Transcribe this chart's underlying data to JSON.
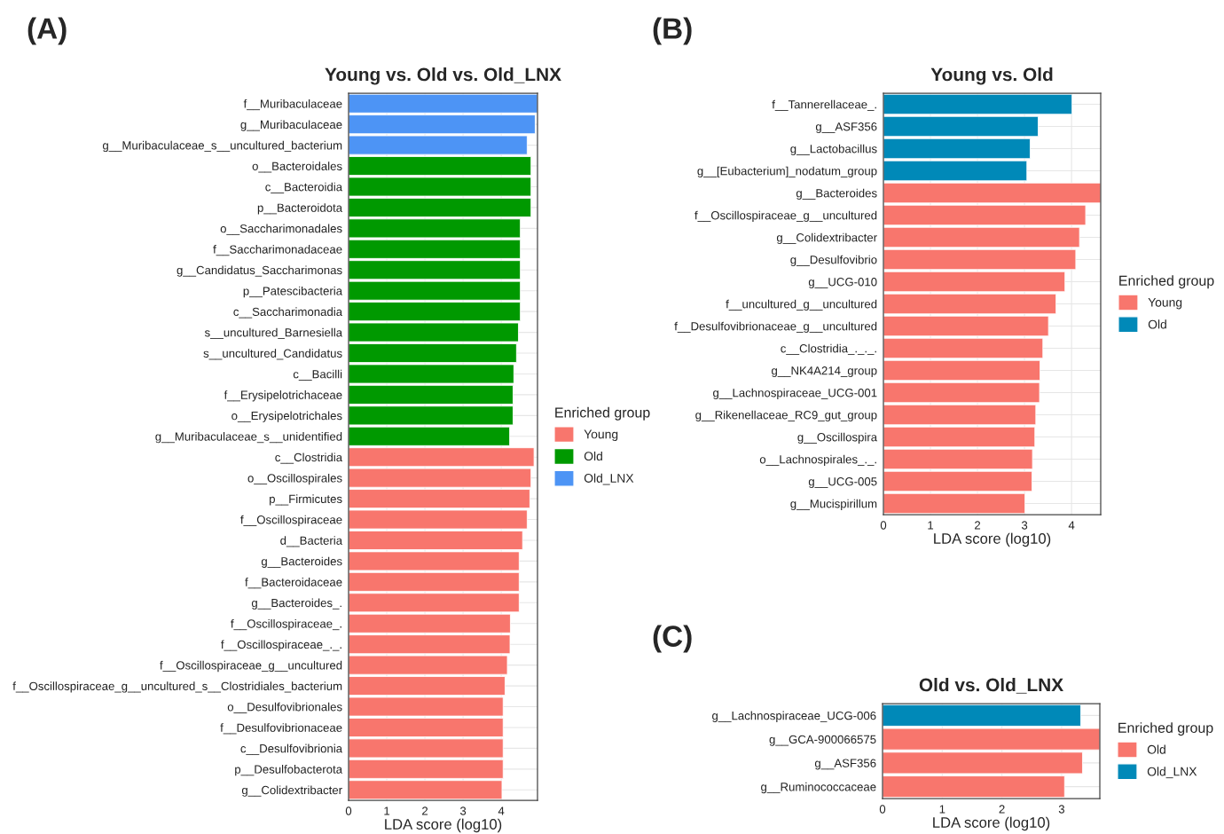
{
  "chart_data": [
    {
      "type": "bar",
      "orientation": "horizontal",
      "title": "Young vs. Old vs. Old_LNX",
      "xlabel": "LDA score (log10)",
      "legend_title": "Enriched group",
      "legend": "right",
      "grid": true,
      "annotations": [
        "(A)"
      ],
      "categories": [
        "f__Muribaculaceae",
        "g__Muribaculaceae",
        "g__Muribaculaceae_s__uncultured_bacterium",
        "o__Bacteroidales",
        "c__Bacteroidia",
        "p__Bacteroidota",
        "o__Saccharimonadales",
        "f__Saccharimonadaceae",
        "g__Candidatus_Saccharimonas",
        "p__Patescibacteria",
        "c__Saccharimonadia",
        "s__uncultured_Barnesiella",
        "s__uncultured_Candidatus",
        "c__Bacilli",
        "f__Erysipelotrichaceae",
        "o__Erysipelotrichales",
        "g__Muribaculaceae_s__unidentified",
        "c__Clostridia",
        "o__Oscillospirales",
        "p__Firmicutes",
        "f__Oscillospiraceae",
        "d__Bacteria",
        "g__Bacteroides",
        "f__Bacteroidaceae",
        "g__Bacteroides_.",
        "f__Oscillospiraceae_.",
        "f__Oscillospiraceae_._.",
        "f__Oscillospiraceae_g__uncultured",
        "f__Oscillospiraceae_g__uncultured_s__Clostridiales_bacterium",
        "o__Desulfovibrionales",
        "f__Desulfovibrionaceae",
        "c__Desulfovibrionia",
        "p__Desulfobacterota",
        "g__Colidextribacter"
      ],
      "xlim": [
        0,
        4.95
      ],
      "xticks": [
        0,
        1,
        2,
        3,
        4
      ],
      "series": [
        {
          "name": "Young",
          "color": "#F8766D",
          "values": [
            null,
            null,
            null,
            null,
            null,
            null,
            null,
            null,
            null,
            null,
            null,
            null,
            null,
            null,
            null,
            null,
            null,
            4.86,
            4.78,
            4.75,
            4.68,
            4.56,
            4.47,
            4.47,
            4.47,
            4.24,
            4.23,
            4.16,
            4.1,
            4.05,
            4.05,
            4.05,
            4.05,
            4.02
          ]
        },
        {
          "name": "Old",
          "color": "#009900",
          "values": [
            null,
            null,
            null,
            4.78,
            4.78,
            4.78,
            4.5,
            4.5,
            4.5,
            4.5,
            4.5,
            4.45,
            4.4,
            4.33,
            4.31,
            4.31,
            4.22,
            null,
            null,
            null,
            null,
            null,
            null,
            null,
            null,
            null,
            null,
            null,
            null,
            null,
            null,
            null,
            null,
            null
          ]
        },
        {
          "name": "Old_LNX",
          "color": "#4D94F5",
          "values": [
            4.95,
            4.89,
            4.68,
            null,
            null,
            null,
            null,
            null,
            null,
            null,
            null,
            null,
            null,
            null,
            null,
            null,
            null,
            null,
            null,
            null,
            null,
            null,
            null,
            null,
            null,
            null,
            null,
            null,
            null,
            null,
            null,
            null,
            null,
            null
          ]
        }
      ]
    },
    {
      "type": "bar",
      "orientation": "horizontal",
      "title": "Young vs. Old",
      "xlabel": "LDA score (log10)",
      "legend_title": "Enriched group",
      "legend": "right",
      "grid": true,
      "annotations": [
        "(B)"
      ],
      "categories": [
        "f__Tannerellaceae_.",
        "g__ASF356",
        "g__Lactobacillus",
        "g__[Eubacterium]_nodatum_group",
        "g__Bacteroides",
        "f__Oscillospiraceae_g__uncultured",
        "g__Colidextribacter",
        "g__Desulfovibrio",
        "g__UCG-010",
        "f__uncultured_g__uncultured",
        "f__Desulfovibrionaceae_g__uncultured",
        "c__Clostridia_._._.",
        "g__NK4A214_group",
        "g__Lachnospiraceae_UCG-001",
        "g__Rikenellaceae_RC9_gut_group",
        "g__Oscillospira",
        "o__Lachnospirales_._.",
        "g__UCG-005",
        "g__Mucispirillum"
      ],
      "xlim": [
        0,
        4.62
      ],
      "xticks": [
        0,
        1,
        2,
        3,
        4
      ],
      "series": [
        {
          "name": "Young",
          "color": "#F8766D",
          "values": [
            null,
            null,
            null,
            null,
            4.62,
            4.3,
            4.17,
            4.09,
            3.86,
            3.67,
            3.51,
            3.39,
            3.33,
            3.32,
            3.24,
            3.22,
            3.17,
            3.16,
            3.01
          ]
        },
        {
          "name": "Old",
          "color": "#0089B8",
          "values": [
            4.01,
            3.29,
            3.12,
            3.05,
            null,
            null,
            null,
            null,
            null,
            null,
            null,
            null,
            null,
            null,
            null,
            null,
            null,
            null,
            null
          ]
        }
      ]
    },
    {
      "type": "bar",
      "orientation": "horizontal",
      "title": "Old vs. Old_LNX",
      "xlabel": "LDA score (log10)",
      "legend_title": "Enriched group",
      "legend": "right",
      "grid": true,
      "annotations": [
        "(C)"
      ],
      "categories": [
        "g__Lachnospiraceae_UCG-006",
        "g__GCA-900066575",
        "g__ASF356",
        "g__Ruminococcaceae"
      ],
      "xlim": [
        0,
        3.64
      ],
      "xticks": [
        0,
        1,
        2,
        3
      ],
      "series": [
        {
          "name": "Old",
          "color": "#F8766D",
          "values": [
            null,
            3.64,
            3.35,
            3.05
          ]
        },
        {
          "name": "Old_LNX",
          "color": "#0089B8",
          "values": [
            3.32,
            null,
            null,
            null
          ]
        }
      ]
    }
  ]
}
